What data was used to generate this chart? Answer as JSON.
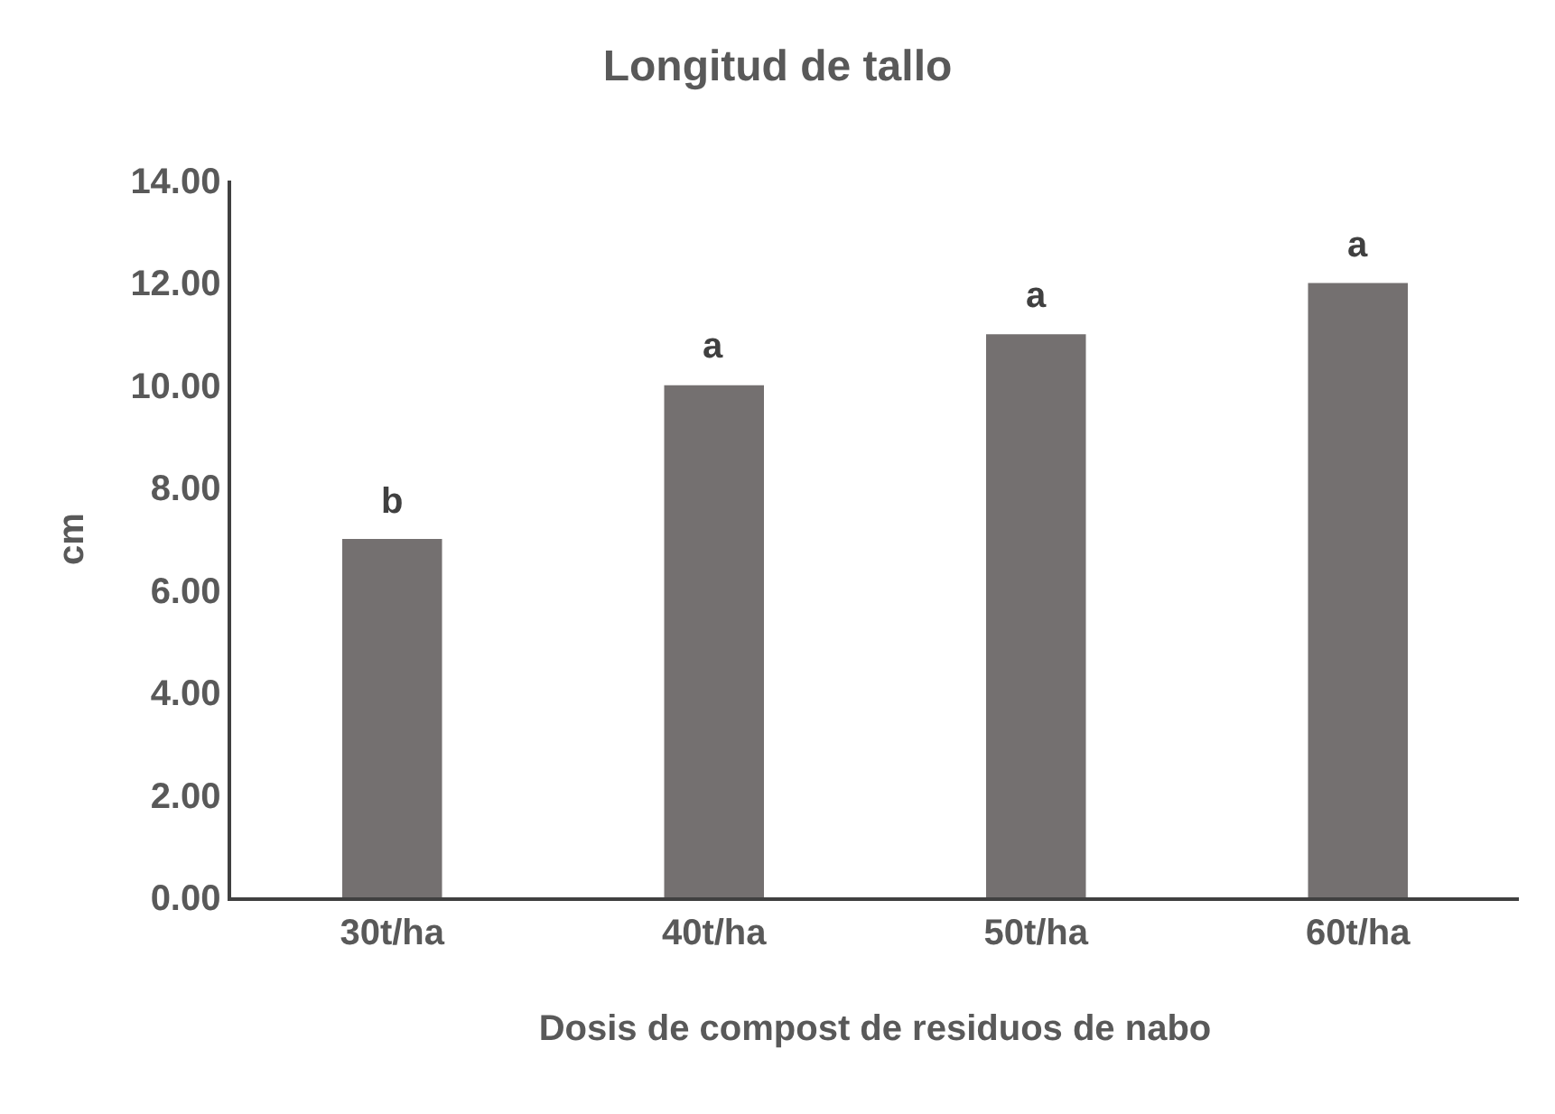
{
  "chart_data": {
    "type": "bar",
    "title": "Longitud de tallo",
    "xlabel": "Dosis de compost de residuos de nabo",
    "ylabel": "cm",
    "categories": [
      "30t/ha",
      "40t/ha",
      "50t/ha",
      "60t/ha"
    ],
    "values": [
      7,
      10,
      11,
      12
    ],
    "color": "#747070",
    "ylim": [
      0,
      14
    ],
    "yticks": [
      {
        "value": 0,
        "label": "0.00"
      },
      {
        "value": 2,
        "label": "2.00"
      },
      {
        "value": 4,
        "label": "4.00"
      },
      {
        "value": 6,
        "label": "6.00"
      },
      {
        "value": 8,
        "label": "8.00"
      },
      {
        "value": 10,
        "label": "10.00"
      },
      {
        "value": 12,
        "label": "12.00"
      },
      {
        "value": 14,
        "label": "14.00"
      }
    ],
    "grid": false,
    "annotations": [
      {
        "text": "b",
        "x": "30t/ha",
        "y": 7
      },
      {
        "text": "a",
        "x": "40t/ha",
        "y": 10
      },
      {
        "text": "a",
        "x": "50t/ha",
        "y": 11
      },
      {
        "text": "a",
        "x": "60t/ha",
        "y": 12
      }
    ]
  }
}
